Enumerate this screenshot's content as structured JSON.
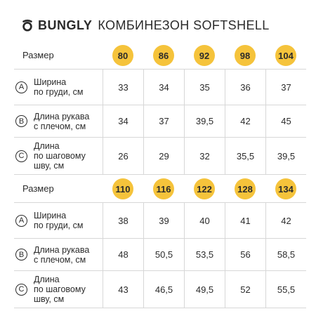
{
  "header": {
    "brand": "BUNGLY",
    "product": "КОМБИНЕЗОН SOFTSHELL",
    "accent_color": "#f5c33b"
  },
  "tables": [
    {
      "size_label": "Размер",
      "sizes": [
        "80",
        "86",
        "92",
        "98",
        "104"
      ],
      "rows": [
        {
          "badge": "A",
          "label": "Ширина\nпо груди, см",
          "values": [
            "33",
            "34",
            "35",
            "36",
            "37"
          ]
        },
        {
          "badge": "B",
          "label": "Длина рукава\nс плечом, см",
          "values": [
            "34",
            "37",
            "39,5",
            "42",
            "45"
          ]
        },
        {
          "badge": "C",
          "label": "Длина\nпо шаговому\nшву, см",
          "values": [
            "26",
            "29",
            "32",
            "35,5",
            "39,5"
          ]
        }
      ]
    },
    {
      "size_label": "Размер",
      "sizes": [
        "110",
        "116",
        "122",
        "128",
        "134"
      ],
      "rows": [
        {
          "badge": "A",
          "label": "Ширина\nпо груди, см",
          "values": [
            "38",
            "39",
            "40",
            "41",
            "42"
          ]
        },
        {
          "badge": "B",
          "label": "Длина рукава\nс плечом, см",
          "values": [
            "48",
            "50,5",
            "53,5",
            "56",
            "58,5"
          ]
        },
        {
          "badge": "C",
          "label": "Длина\nпо шаговому\nшву, см",
          "values": [
            "43",
            "46,5",
            "49,5",
            "52",
            "55,5"
          ]
        }
      ]
    }
  ]
}
